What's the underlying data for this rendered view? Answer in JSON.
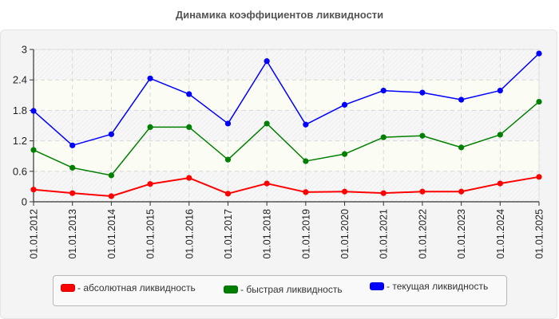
{
  "chart_data": {
    "type": "line",
    "title": "Динамика коэффициентов ликвидности",
    "xlabel": "",
    "ylabel": "",
    "ylim": [
      0,
      3
    ],
    "yticks": [
      0,
      0.6,
      1.2,
      1.8,
      2.4,
      3
    ],
    "ytick_labels": [
      "0",
      "0.6",
      "1.2",
      "1.8",
      "2.4",
      "3"
    ],
    "grid": true,
    "legend_position": "bottom",
    "categories": [
      "01.01.2012",
      "01.01.2013",
      "01.01.2014",
      "01.01.2015",
      "01.01.2016",
      "01.01.2017",
      "01.01.2018",
      "01.01.2019",
      "01.01.2020",
      "01.01.2021",
      "01.01.2022",
      "01.01.2023",
      "01.01.2024",
      "01.01.2025"
    ],
    "series": [
      {
        "name": "абсолютная ликвидность",
        "legend_label": "- абсолютная ликвидность",
        "color": "#ff0000",
        "values": [
          0.24,
          0.17,
          0.11,
          0.35,
          0.47,
          0.16,
          0.36,
          0.19,
          0.2,
          0.17,
          0.2,
          0.2,
          0.36,
          0.49
        ]
      },
      {
        "name": "быстрая ликвидность",
        "legend_label": "- быстрая ликвидность",
        "color": "#008000",
        "values": [
          1.02,
          0.67,
          0.52,
          1.47,
          1.47,
          0.83,
          1.54,
          0.8,
          0.94,
          1.27,
          1.3,
          1.07,
          1.32,
          1.97
        ]
      },
      {
        "name": "текущая ликвидность",
        "legend_label": "- текущая ликвидность",
        "color": "#0000ff",
        "values": [
          1.79,
          1.11,
          1.33,
          2.43,
          2.12,
          1.54,
          2.77,
          1.52,
          1.91,
          2.19,
          2.15,
          2.01,
          2.19,
          2.92
        ]
      }
    ]
  }
}
